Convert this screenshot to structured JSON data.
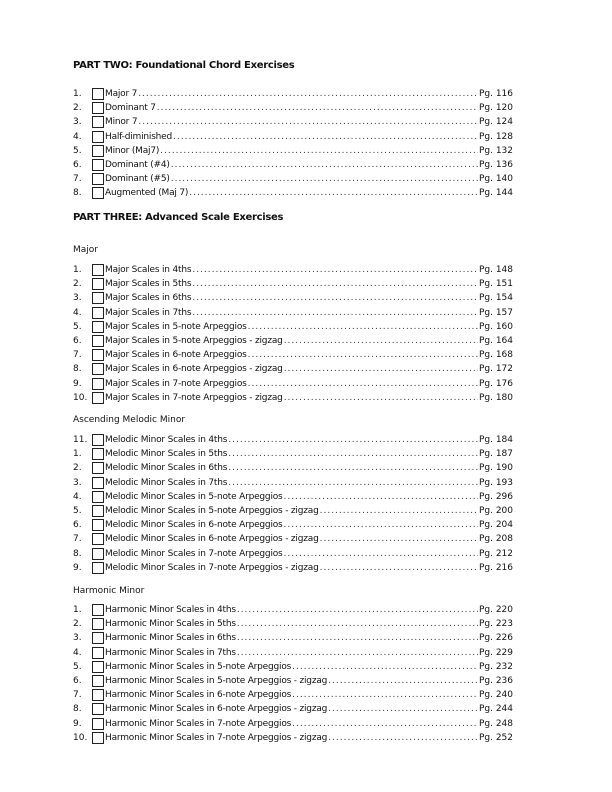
{
  "part_two": {
    "title": "PART TWO: Foundational Chord Exercises",
    "items": [
      {
        "num": "1.",
        "label": "Major 7",
        "page": "Pg. 116"
      },
      {
        "num": "2.",
        "label": "Dominant 7",
        "page": "Pg. 120"
      },
      {
        "num": "3.",
        "label": "Minor 7",
        "page": "Pg. 124"
      },
      {
        "num": "4.",
        "label": "Half-diminished",
        "page": "Pg. 128"
      },
      {
        "num": "5.",
        "label": "Minor (Maj7)",
        "page": "Pg. 132"
      },
      {
        "num": "6.",
        "label": "Dominant (#4)",
        "page": "Pg. 136"
      },
      {
        "num": "7.",
        "label": "Dominant (#5)",
        "page": "Pg. 140"
      },
      {
        "num": "8.",
        "label": "Augmented (Maj 7)",
        "page": "Pg. 144"
      }
    ]
  },
  "part_three": {
    "title": "PART THREE: Advanced Scale Exercises",
    "major": {
      "heading": "Major",
      "items": [
        {
          "num": "1.",
          "label": "Major Scales in 4ths",
          "page": "Pg. 148"
        },
        {
          "num": "2.",
          "label": "Major Scales in 5ths",
          "page": "Pg. 151"
        },
        {
          "num": "3.",
          "label": "Major Scales in 6ths",
          "page": "Pg. 154"
        },
        {
          "num": "4.",
          "label": "Major Scales in 7ths",
          "page": "Pg. 157"
        },
        {
          "num": "5.",
          "label": "Major Scales in 5-note Arpeggios",
          "page": "Pg. 160"
        },
        {
          "num": "6.",
          "label": "Major Scales in 5-note Arpeggios - zigzag",
          "page": "Pg. 164"
        },
        {
          "num": "7.",
          "label": "Major Scales in 6-note Arpeggios",
          "page": "Pg. 168"
        },
        {
          "num": "8.",
          "label": "Major Scales in 6-note Arpeggios - zigzag",
          "page": "Pg. 172"
        },
        {
          "num": "9.",
          "label": "Major Scales in 7-note Arpeggios",
          "page": "Pg. 176"
        },
        {
          "num": "10.",
          "label": "Major Scales in 7-note Arpeggios - zigzag",
          "page": "Pg. 180"
        }
      ]
    },
    "melodic_minor": {
      "heading": "Ascending Melodic Minor",
      "items": [
        {
          "num": "11.",
          "label": "Melodic Minor Scales in 4ths",
          "page": "Pg. 184"
        },
        {
          "num": "1.",
          "label": "Melodic Minor Scales in 5ths",
          "page": "Pg. 187"
        },
        {
          "num": "2.",
          "label": "Melodic Minor Scales in 6ths",
          "page": "Pg. 190"
        },
        {
          "num": "3.",
          "label": "Melodic Minor Scales in 7ths",
          "page": "Pg. 193"
        },
        {
          "num": "4.",
          "label": "Melodic Minor Scales in 5-note Arpeggios",
          "page": "Pg. 296"
        },
        {
          "num": "5.",
          "label": "Melodic Minor Scales in 5-note Arpeggios - zigzag",
          "page": "Pg. 200"
        },
        {
          "num": "6.",
          "label": "Melodic Minor Scales in 6-note Arpeggios",
          "page": "Pg. 204"
        },
        {
          "num": "7.",
          "label": "Melodic Minor Scales in 6-note Arpeggios - zigzag",
          "page": "Pg. 208"
        },
        {
          "num": "8.",
          "label": "Melodic Minor Scales in 7-note Arpeggios",
          "page": "Pg. 212"
        },
        {
          "num": "9.",
          "label": "Melodic Minor Scales in 7-note Arpeggios - zigzag",
          "page": "Pg. 216"
        }
      ]
    },
    "harmonic_minor": {
      "heading": "Harmonic Minor",
      "items": [
        {
          "num": "1.",
          "label": "Harmonic Minor Scales in 4ths",
          "page": "Pg. 220"
        },
        {
          "num": "2.",
          "label": "Harmonic Minor Scales in 5ths",
          "page": "Pg. 223"
        },
        {
          "num": "3.",
          "label": "Harmonic Minor Scales in 6ths",
          "page": "Pg. 226"
        },
        {
          "num": "4.",
          "label": "Harmonic Minor Scales in 7ths",
          "page": "Pg. 229"
        },
        {
          "num": "5.",
          "label": "Harmonic Minor Scales in 5-note Arpeggios",
          "page": "Pg. 232"
        },
        {
          "num": "6.",
          "label": "Harmonic Minor Scales in 5-note Arpeggios - zigzag",
          "page": "Pg. 236"
        },
        {
          "num": "7.",
          "label": "Harmonic Minor Scales in 6-note Arpeggios",
          "page": "Pg. 240"
        },
        {
          "num": "8.",
          "label": "Harmonic Minor Scales in 6-note Arpeggios - zigzag",
          "page": "Pg. 244"
        },
        {
          "num": "9.",
          "label": "Harmonic Minor Scales in 7-note Arpeggios",
          "page": "Pg. 248"
        },
        {
          "num": "10.",
          "label": "Harmonic Minor Scales in 7-note Arpeggios - zigzag",
          "page": "Pg. 252"
        }
      ]
    }
  }
}
